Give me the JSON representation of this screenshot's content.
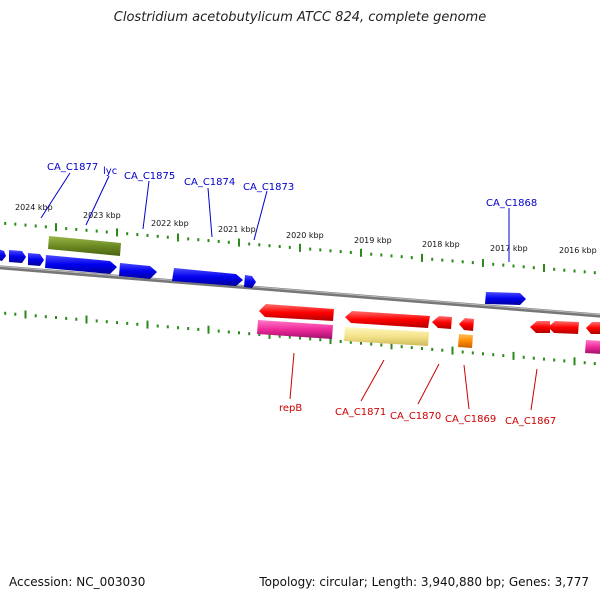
{
  "header": {
    "title": "Clostridium acetobutylicum ATCC 824, complete genome"
  },
  "footer": {
    "accession": "Accession: NC_003030",
    "topology": "Topology: circular; Length: 3,940,880 bp; Genes: 3,777"
  },
  "colors": {
    "forward_label": "#0000cc",
    "reverse_label": "#cc0000",
    "forward_gene": "#0000ee",
    "reverse_gene": "#ff0000",
    "tick": "#2a8a1a",
    "backbone": "#8a8a8a"
  },
  "scale": {
    "ticks": [
      {
        "label": "2024 kbp",
        "kbp": 2024
      },
      {
        "label": "2023 kbp",
        "kbp": 2023
      },
      {
        "label": "2022 kbp",
        "kbp": 2022
      },
      {
        "label": "2021 kbp",
        "kbp": 2021
      },
      {
        "label": "2020 kbp",
        "kbp": 2020
      },
      {
        "label": "2019 kbp",
        "kbp": 2019
      },
      {
        "label": "2018 kbp",
        "kbp": 2018
      },
      {
        "label": "2017 kbp",
        "kbp": 2017
      },
      {
        "label": "2016 kbp",
        "kbp": 2016
      }
    ]
  },
  "forward_labels": [
    {
      "text": "CA_C1877"
    },
    {
      "text": "lyc"
    },
    {
      "text": "CA_C1875"
    },
    {
      "text": "CA_C1874"
    },
    {
      "text": "CA_C1873"
    },
    {
      "text": "CA_C1868"
    }
  ],
  "reverse_labels": [
    {
      "text": "repB"
    },
    {
      "text": "CA_C1871"
    },
    {
      "text": "CA_C1870"
    },
    {
      "text": "CA_C1869"
    },
    {
      "text": "CA_C1867"
    }
  ]
}
